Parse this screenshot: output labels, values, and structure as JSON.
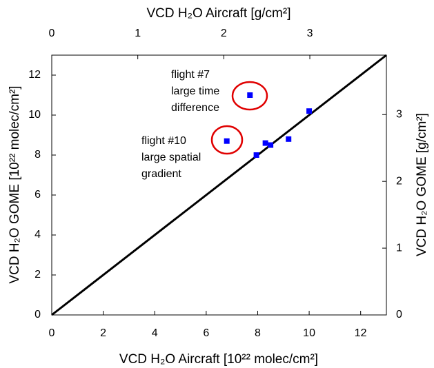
{
  "chart_data": {
    "type": "scatter",
    "xlabel": "VCD H₂O Aircraft [10²² molec/cm²]",
    "ylabel": "VCD H₂O GOME [10²² molec/cm²]",
    "x2label": "VCD H₂O Aircraft [g/cm²]",
    "y2label": "VCD H₂O GOME [g/cm²]",
    "xlim": [
      0,
      13
    ],
    "ylim": [
      0,
      13
    ],
    "xticks": [
      0,
      2,
      4,
      6,
      8,
      10,
      12
    ],
    "yticks": [
      0,
      2,
      4,
      6,
      8,
      10,
      12
    ],
    "x2lim": [
      0,
      3.89
    ],
    "y2lim": [
      0,
      3.89
    ],
    "x2ticks": [
      0,
      1,
      2,
      3
    ],
    "y2ticks": [
      0,
      1,
      2,
      3
    ],
    "one_to_one_line": true,
    "series": [
      {
        "color": "#0000ff",
        "x": [
          6.8,
          7.7,
          7.95,
          8.3,
          8.5,
          9.2,
          10.0
        ],
        "values": [
          8.7,
          11.0,
          8.0,
          8.6,
          8.5,
          8.8,
          10.2
        ]
      }
    ],
    "annotations": [
      [
        "flight #7",
        "large time",
        "difference"
      ],
      [
        "flight #10",
        "large spatial",
        "gradient"
      ]
    ]
  }
}
